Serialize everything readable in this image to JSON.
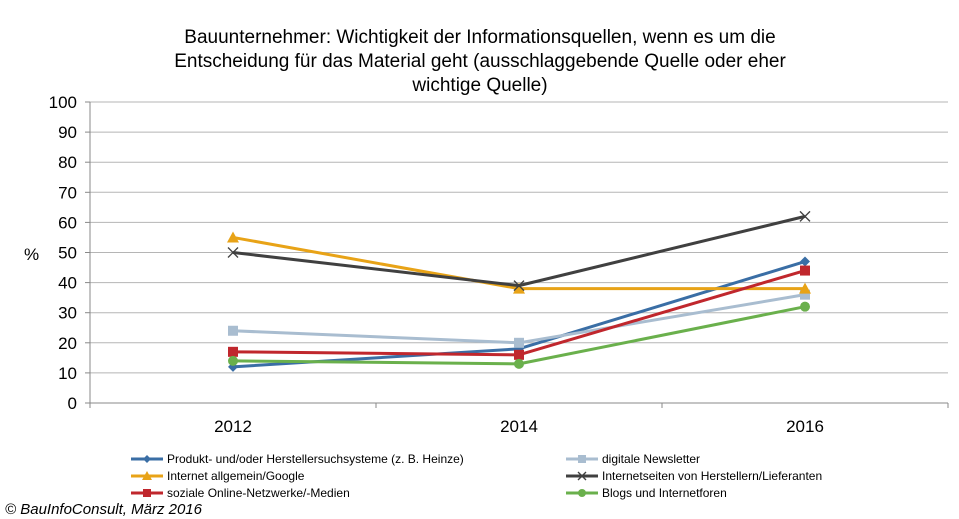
{
  "chart_data": {
    "type": "line",
    "title_lines": [
      "Bauunternehmer:  Wichtigkeit der Informationsquellen,  wenn es um die",
      "Entscheidung  für das Material geht (ausschlaggebende  Quelle oder eher",
      "wichtige Quelle)"
    ],
    "ylabel": "%",
    "xlabel": "",
    "x": [
      "2012",
      "2014",
      "2016"
    ],
    "ylim": [
      0,
      100
    ],
    "yticks": [
      "0",
      "10",
      "20",
      "30",
      "40",
      "50",
      "60",
      "70",
      "80",
      "90",
      "100"
    ],
    "grid": true,
    "legend_position": "bottom",
    "series": [
      {
        "name": "Produkt- und/oder Herstellersuchsysteme (z. B. Heinze)",
        "values": [
          12,
          18,
          47
        ],
        "color": "#3a6ea5",
        "marker": "diamond"
      },
      {
        "name": "digitale Newsletter",
        "values": [
          24,
          20,
          36
        ],
        "color": "#a9bdd0",
        "marker": "square"
      },
      {
        "name": "Internet allgemein/Google",
        "values": [
          55,
          38,
          38
        ],
        "color": "#e8a317",
        "marker": "triangle"
      },
      {
        "name": "Internetseiten von Herstellern/Lieferanten",
        "values": [
          50,
          39,
          62
        ],
        "color": "#404040",
        "marker": "x"
      },
      {
        "name": "soziale Online-Netzwerke/-Medien",
        "values": [
          17,
          16,
          44
        ],
        "color": "#c0272d",
        "marker": "square"
      },
      {
        "name": "Blogs und Internetforen",
        "values": [
          14,
          13,
          32
        ],
        "color": "#6ab04c",
        "marker": "circle"
      }
    ]
  },
  "footer": {
    "copyright": "© BauInfoConsult, März 2016"
  }
}
